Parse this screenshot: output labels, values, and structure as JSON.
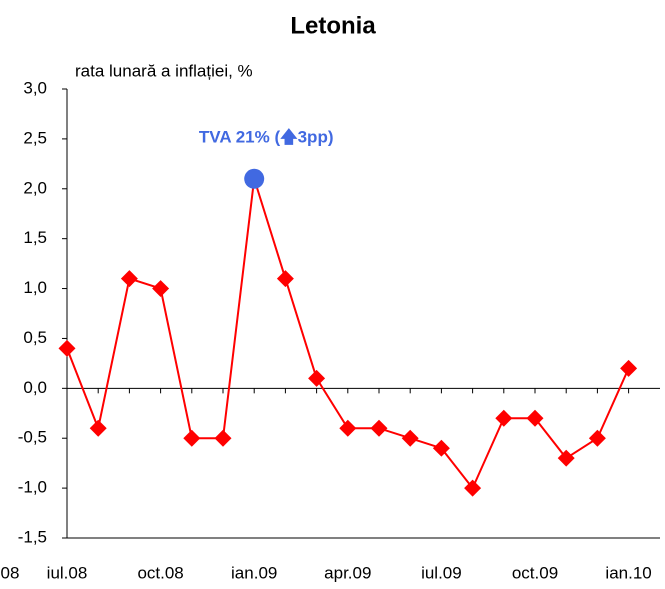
{
  "chart_data": {
    "type": "line",
    "title": "Letonia",
    "y_label": "rata lunară a inflației, %",
    "categories": [
      "iul.08",
      null,
      null,
      "oct.08",
      null,
      null,
      "ian.09",
      null,
      null,
      "apr.09",
      null,
      null,
      "iul.09",
      null,
      null,
      "oct.09",
      null,
      null,
      "ian.10"
    ],
    "clipped_label": "08",
    "series": [
      {
        "name": null,
        "color": "#ff0000",
        "values": [
          0.4,
          -0.4,
          1.1,
          1.0,
          -0.5,
          -0.5,
          2.1,
          1.1,
          0.1,
          -0.4,
          -0.4,
          -0.5,
          -0.6,
          -1.0,
          -0.3,
          -0.3,
          -0.7,
          -0.5,
          0.2
        ]
      }
    ],
    "annotation": {
      "text": "TVA 21% (🡅3pp)",
      "at": "ian.09",
      "color": "#4169e1"
    },
    "ylim": [
      -1.5,
      3.0
    ],
    "yticks": [
      {
        "value": -1.5,
        "label": "-1,5"
      },
      {
        "value": -1.0,
        "label": "-1,0"
      },
      {
        "value": -0.5,
        "label": "-0,5"
      },
      {
        "value": 0,
        "label": "0,0"
      },
      {
        "value": 0.5,
        "label": "0,5"
      },
      {
        "value": 1.0,
        "label": "1,0"
      },
      {
        "value": 1.5,
        "label": "1,5"
      },
      {
        "value": 2.0,
        "label": "2,0"
      },
      {
        "value": 2.5,
        "label": "2,5"
      },
      {
        "value": 3.0,
        "label": "3,0"
      }
    ]
  }
}
